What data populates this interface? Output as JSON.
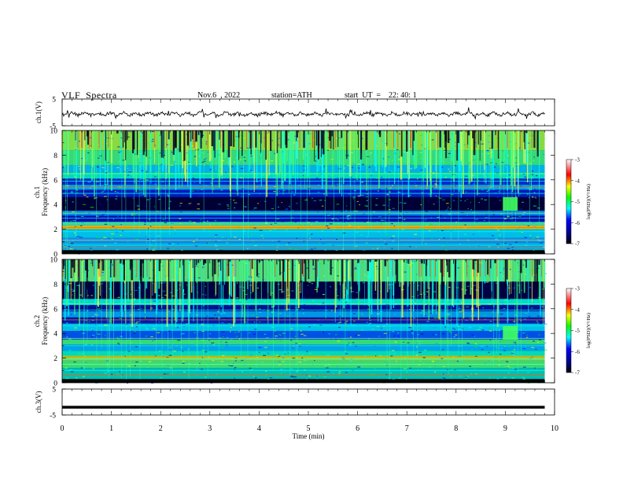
{
  "header": {
    "title": "VLF  Spectra",
    "date": "Nov.6  , 2022",
    "station": "station=ATH",
    "start_ut": "start  UT  =    22: 40: 1"
  },
  "chart_data": [
    {
      "type": "line",
      "panel": "ch1-waveform",
      "ylabel": "ch.1(V)",
      "ylim": [
        -5,
        5
      ],
      "y_ticks": [
        "5",
        "-5"
      ],
      "xlim": [
        0,
        10
      ],
      "approx_level": 0
    },
    {
      "type": "heatmap",
      "panel": "ch1-spectrogram",
      "ylabel": "ch.1\nFrequency (kHz)",
      "ylim": [
        0,
        10
      ],
      "y_ticks": [
        "0",
        "2",
        "4",
        "6",
        "8",
        "10"
      ],
      "xlim": [
        0,
        9.8
      ],
      "colorbar": {
        "label": "log(PSD)(V²/Hz)",
        "range": [
          -7,
          -3
        ],
        "ticks": [
          "-3",
          "-4",
          "-5",
          "-6",
          "-7"
        ]
      }
    },
    {
      "type": "heatmap",
      "panel": "ch2-spectrogram",
      "ylabel": "ch.2\nFrequency (kHz)",
      "ylim": [
        0,
        10
      ],
      "y_ticks": [
        "0",
        "2",
        "4",
        "6",
        "8",
        "10"
      ],
      "xlim": [
        0,
        9.8
      ],
      "colorbar": {
        "label": "log(PSD)(V²/Hz)",
        "range": [
          -7,
          -3
        ],
        "ticks": [
          "-3",
          "-4",
          "-5",
          "-6",
          "-7"
        ]
      }
    },
    {
      "type": "line",
      "panel": "ch3-waveform",
      "ylabel": "ch.3(V)",
      "ylim": [
        -5,
        5
      ],
      "y_ticks": [
        "5",
        "-5"
      ],
      "xlim": [
        0,
        10
      ],
      "approx_level": -2
    }
  ],
  "x_axis": {
    "label": "Time  (min)",
    "ticks": [
      "0",
      "1",
      "2",
      "3",
      "4",
      "5",
      "6",
      "7",
      "8",
      "9",
      "10"
    ]
  },
  "colors": {
    "deep": "#000033",
    "navy": "#00008b",
    "blue": "#0000ff",
    "cyan": "#00ffff",
    "green": "#00ff00",
    "yellow": "#ffff00",
    "red": "#ff0000",
    "white": "#ffffff"
  }
}
